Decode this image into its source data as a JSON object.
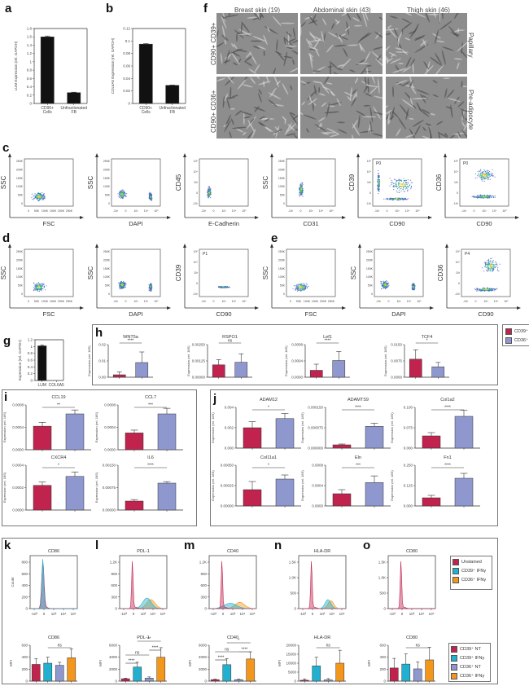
{
  "panels": {
    "a": {
      "label": "a"
    },
    "b": {
      "label": "b"
    },
    "c": {
      "label": "c"
    },
    "d": {
      "label": "d"
    },
    "e": {
      "label": "e"
    },
    "f": {
      "label": "f"
    },
    "g": {
      "label": "g"
    },
    "h": {
      "label": "h"
    },
    "i": {
      "label": "i"
    },
    "j": {
      "label": "j"
    },
    "k": {
      "label": "k"
    },
    "l": {
      "label": "l"
    },
    "m": {
      "label": "m"
    },
    "n": {
      "label": "n"
    },
    "o": {
      "label": "o"
    }
  },
  "colors": {
    "cd39": "#c0234e",
    "cd36": "#8f97cf",
    "cd39_ifng": "#21b0cf",
    "cd36_ifng": "#f3961c",
    "unstained": "#c0234e",
    "black_bar": "#111111"
  },
  "micrographs": {
    "columns": [
      "Breast skin (19)",
      "Abdominal skin (43)",
      "Thigh skin (46)"
    ],
    "rows_left": [
      "CD90+ CD39+",
      "CD90+ CD36+"
    ],
    "rows_right": [
      "Papillary",
      "Pre-adipocyte"
    ]
  },
  "flow": {
    "c": [
      {
        "x": "FSC",
        "y": "SSC",
        "gate": ""
      },
      {
        "x": "DAPI",
        "y": "SSC",
        "gate": ""
      },
      {
        "x": "E-Cadherin",
        "y": "CD45",
        "gate": ""
      },
      {
        "x": "CD31",
        "y": "SSC",
        "gate": ""
      },
      {
        "x": "CD90",
        "y": "CD39",
        "gate": "P0"
      },
      {
        "x": "CD90",
        "y": "CD36",
        "gate": "P0"
      }
    ],
    "d": [
      {
        "x": "FSC",
        "y": "SSC",
        "gate": ""
      },
      {
        "x": "DAPI",
        "y": "SSC",
        "gate": ""
      },
      {
        "x": "CD90",
        "y": "CD39",
        "gate": "P1"
      }
    ],
    "e": [
      {
        "x": "FSC",
        "y": "SSC",
        "gate": ""
      },
      {
        "x": "DAPI",
        "y": "SSC",
        "gate": ""
      },
      {
        "x": "CD90",
        "y": "CD36",
        "gate": "P4"
      }
    ],
    "lin_ticks": [
      "250K",
      "200K",
      "150K",
      "100K",
      "50K",
      "0"
    ],
    "fsc_ticks": [
      "0",
      "50K",
      "100K",
      "150K",
      "200K",
      "250K"
    ],
    "log_ticks_y": [
      "10⁵",
      "10⁴",
      "10³",
      "0",
      "-10³"
    ],
    "log_ticks_x": [
      "-10³",
      "0",
      "10³",
      "10⁴",
      "10⁵"
    ]
  },
  "legends": {
    "h": [
      "CD39⁺",
      "CD36⁺"
    ],
    "k_hist": [
      "Unstained",
      "CD39⁺ IFNγ",
      "CD36⁺ IFNγ"
    ],
    "k_bar": [
      "CD39⁺ NT",
      "CD39⁺ IFNγ",
      "CD36⁺ NT",
      "CD36⁺ IFNγ"
    ]
  },
  "chart_data": [
    {
      "panel": "a",
      "type": "bar",
      "title": "",
      "categories": [
        "CD90+ Cells",
        "Unfractionated FB"
      ],
      "values": [
        1.6,
        0.26
      ],
      "errors": [
        0.02,
        0.01
      ],
      "ylabel": "LUM Expression (rel. GAPDH)",
      "ylim": [
        0,
        1.8
      ],
      "yticks": [
        "0",
        "0.2",
        "0.4",
        "0.6",
        "0.8",
        "1",
        "1.2",
        "1.4",
        "1.6",
        "1.8"
      ]
    },
    {
      "panel": "b",
      "type": "bar",
      "title": "",
      "categories": [
        "CD90+ Cells",
        "Unfractionated FB"
      ],
      "values": [
        0.095,
        0.029
      ],
      "errors": [
        0.001,
        0.0005
      ],
      "ylabel": "COL6A5 Expression (rel. GAPDH)",
      "ylim": [
        0,
        0.12
      ],
      "yticks": [
        "0",
        "0.02",
        "0.04",
        "0.06",
        "0.08",
        "0.1",
        "0.12"
      ]
    },
    {
      "panel": "g",
      "type": "bar",
      "title": "",
      "categories": [
        "LUM",
        "COL6A5"
      ],
      "values": [
        1.02,
        0.0
      ],
      "errors": [
        0.02,
        0
      ],
      "ylabel": "Expression (rel. GAPDH)",
      "ylim": [
        0,
        1.2
      ],
      "yticks": [
        "0",
        "0.2",
        "0.4",
        "0.6",
        "0.8",
        "1",
        "1.2"
      ]
    },
    {
      "panel": "h",
      "type": "bar",
      "ylabel": "Expression (rel. 18S)",
      "legend": [
        "CD39⁺",
        "CD36⁺"
      ],
      "subplots": [
        {
          "title": "WNT5a",
          "values": [
            0.0015,
            0.009
          ],
          "errors": [
            0.0018,
            0.0065
          ],
          "ylim": [
            0,
            0.02
          ],
          "yticks": [
            "0.00",
            "0.01",
            "0.02"
          ],
          "sig": "****"
        },
        {
          "title": "RSPO1",
          "values": [
            0.00095,
            0.00115
          ],
          "errors": [
            0.0004,
            0.00065
          ],
          "ylim": [
            0,
            0.0025
          ],
          "yticks": [
            "0.00000",
            "0.00125",
            "0.00250"
          ],
          "sig": "ns"
        },
        {
          "title": "Lef1",
          "values": [
            0.00017,
            0.00041
          ],
          "errors": [
            0.00015,
            0.00022
          ],
          "ylim": [
            0,
            0.0008
          ],
          "yticks": [
            "0.0000",
            "0.0004",
            "0.0008"
          ],
          "sig": "****"
        },
        {
          "title": "TCF4",
          "values": [
            0.0083,
            0.0048
          ],
          "errors": [
            0.0043,
            0.002
          ],
          "ylim": [
            0,
            0.015
          ],
          "yticks": [
            "0.0000",
            "0.0075",
            "0.0150"
          ],
          "sig": "*"
        }
      ]
    },
    {
      "panel": "i",
      "type": "bar",
      "ylabel": "Expression (rel. 18S)",
      "subplots": [
        {
          "title": "CCL19",
          "values": [
            0.00042,
            0.00064
          ],
          "errors": [
            7e-05,
            7e-05
          ],
          "ylim": [
            0,
            0.0008
          ],
          "yticks": [
            "0.0000",
            "0.0004",
            "0.0008"
          ],
          "sig": "**"
        },
        {
          "title": "CCL7",
          "values": [
            0.0003,
            0.00064
          ],
          "errors": [
            5e-05,
            0.0001
          ],
          "ylim": [
            0,
            0.0008
          ],
          "yticks": [
            "0.0000",
            "0.0004",
            "0.0008"
          ],
          "sig": "***"
        },
        {
          "title": "CXCR4",
          "values": [
            0.00022,
            0.0003
          ],
          "errors": [
            3e-05,
            4e-05
          ],
          "ylim": [
            0,
            0.0004
          ],
          "yticks": [
            "0.0000",
            "0.0002",
            "0.0004"
          ],
          "sig": "*"
        },
        {
          "title": "IL6",
          "values": [
            0.0003,
            0.0009
          ],
          "errors": [
            5e-05,
            5e-05
          ],
          "ylim": [
            0,
            0.0015
          ],
          "yticks": [
            "0.00000",
            "0.00075",
            "0.00150"
          ],
          "sig": "****"
        }
      ]
    },
    {
      "panel": "j",
      "type": "bar",
      "ylabel": "Expression (rel. 18S)",
      "subplots": [
        {
          "title": "ADAM12",
          "values": [
            0.002,
            0.0029
          ],
          "errors": [
            0.0006,
            0.0005
          ],
          "ylim": [
            0,
            0.004
          ],
          "yticks": [
            "0.000",
            "0.002",
            "0.004"
          ],
          "sig": "*"
        },
        {
          "title": "ADAMTS9",
          "values": [
            1.2e-05,
            8e-05
          ],
          "errors": [
            3e-06,
            1.2e-05
          ],
          "ylim": [
            0,
            0.00015
          ],
          "yticks": [
            "0.000000",
            "0.000075",
            "0.000150"
          ],
          "sig": "****"
        },
        {
          "title": "Col1a2",
          "values": [
            0.03,
            0.078
          ],
          "errors": [
            0.008,
            0.015
          ],
          "ylim": [
            0,
            0.1
          ],
          "yticks": [
            "0.000",
            "0.075",
            "0.100"
          ],
          "sig": "****"
        },
        {
          "title": "Col11a1",
          "values": [
            0.0002,
            0.00033
          ],
          "errors": [
            0.0001,
            5e-05
          ],
          "ylim": [
            0,
            0.0005
          ],
          "yticks": [
            "0.00000",
            "0.00025",
            "0.00050"
          ],
          "sig": "*"
        },
        {
          "title": "Eln",
          "values": [
            0.00024,
            0.00046
          ],
          "errors": [
            8e-05,
            0.00013
          ],
          "ylim": [
            0,
            0.0008
          ],
          "yticks": [
            "0.0000",
            "0.0004",
            "0.0008"
          ],
          "sig": "***"
        },
        {
          "title": "Fn1",
          "values": [
            0.05,
            0.17
          ],
          "errors": [
            0.015,
            0.03
          ],
          "ylim": [
            0,
            0.25
          ],
          "yticks": [
            "0.000",
            "0.125",
            "0.250"
          ],
          "sig": "****"
        }
      ]
    },
    {
      "panel": "k-o histograms",
      "type": "area",
      "xticks": [
        "-10³",
        "0",
        "10³",
        "10⁴",
        "10⁵"
      ],
      "subplots": [
        {
          "title": "CD86",
          "ylabel": "Count",
          "yticks": [
            "0",
            "200",
            "400",
            "600",
            "800"
          ]
        },
        {
          "title": "PDL-1",
          "yticks": [
            "0",
            "300",
            "600",
            "900",
            "1.2K"
          ]
        },
        {
          "title": "CD40",
          "yticks": [
            "0",
            "300",
            "600",
            "900",
            "1.2K"
          ]
        },
        {
          "title": "HLA-DR",
          "yticks": [
            "0",
            "500",
            "1.0K",
            "1.5K"
          ]
        },
        {
          "title": "CD80",
          "yticks": [
            "0",
            "500",
            "1.0K",
            "1.5K"
          ]
        }
      ]
    },
    {
      "panel": "k-o MFI",
      "type": "bar",
      "ylabel": "MFI",
      "categories": [
        "CD39⁺ NT",
        "CD39⁺ IFNγ",
        "CD36⁺ NT",
        "CD36⁺ IFNγ"
      ],
      "subplots": [
        {
          "title": "CD86",
          "values": [
            280,
            300,
            265,
            390
          ],
          "errors": [
            95,
            100,
            50,
            150
          ],
          "ylim": [
            0,
            600
          ],
          "yticks": [
            "0",
            "200",
            "400",
            "600"
          ],
          "sig": [
            "ns"
          ]
        },
        {
          "title": "PDL-1",
          "values": [
            400,
            2350,
            500,
            4000
          ],
          "errors": [
            100,
            800,
            200,
            1600
          ],
          "ylim": [
            0,
            6000
          ],
          "yticks": [
            "0",
            "2000",
            "4000",
            "6000"
          ],
          "sig": [
            "****",
            "ns",
            "****",
            "**"
          ]
        },
        {
          "title": "CD40",
          "values": [
            250,
            2750,
            250,
            3700
          ],
          "errors": [
            80,
            1000,
            80,
            1200
          ],
          "ylim": [
            0,
            6000
          ],
          "yticks": [
            "0",
            "2000",
            "4000",
            "6000"
          ],
          "sig": [
            "****",
            "ns",
            "****",
            "*"
          ]
        },
        {
          "title": "HLA-DR",
          "values": [
            500,
            8500,
            700,
            10000
          ],
          "errors": [
            700,
            4800,
            700,
            7200
          ],
          "ylim": [
            0,
            20000
          ],
          "yticks": [
            "0",
            "5000",
            "10000",
            "15000",
            "20000"
          ],
          "sig": [
            "ns"
          ]
        },
        {
          "title": "CD80",
          "values": [
            220,
            285,
            205,
            355
          ],
          "errors": [
            160,
            170,
            115,
            210
          ],
          "ylim": [
            0,
            600
          ],
          "yticks": [
            "0",
            "200",
            "400",
            "600"
          ],
          "sig": [
            "ns"
          ]
        }
      ]
    }
  ]
}
